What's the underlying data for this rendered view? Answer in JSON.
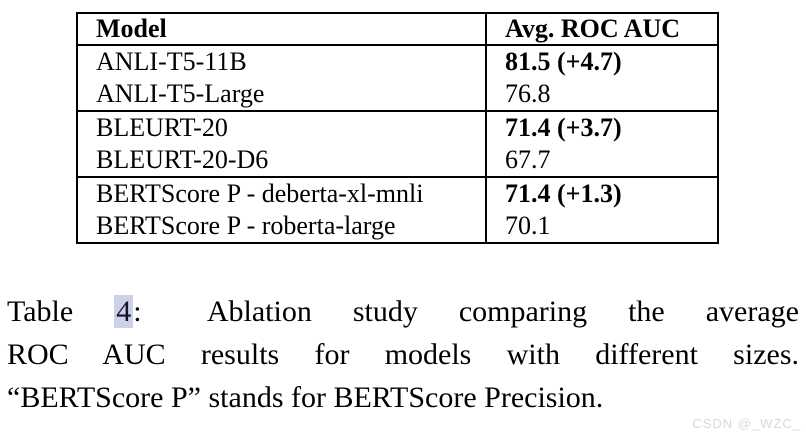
{
  "table": {
    "headers": [
      {
        "label": "Model"
      },
      {
        "label": "Avg. ROC AUC"
      }
    ],
    "groups": [
      {
        "rows": [
          {
            "model": "ANLI-T5-11B",
            "score": "81.5 (+4.7)"
          },
          {
            "model": "ANLI-T5-Large",
            "score": "76.8"
          }
        ]
      },
      {
        "rows": [
          {
            "model": "BLEURT-20",
            "score": "71.4 (+3.7)"
          },
          {
            "model": "BLEURT-20-D6",
            "score": "67.7"
          }
        ]
      },
      {
        "rows": [
          {
            "model": "BERTScore P - deberta-xl-mnli",
            "score": "71.4 (+1.3)"
          },
          {
            "model": "BERTScore P - roberta-large",
            "score": "70.1"
          }
        ]
      }
    ]
  },
  "caption": {
    "label": "Table",
    "number": "4",
    "colon": ":",
    "line1_rest": "Ablation study comparing the average",
    "line2": "ROC AUC results for models with different sizes.",
    "line3": "“BERTScore P” stands for BERTScore Precision.",
    "link_highlight_color": "#cdd0e8"
  },
  "watermark": {
    "text": "CSDN @_WZC_",
    "color": "#d8d8d8"
  }
}
